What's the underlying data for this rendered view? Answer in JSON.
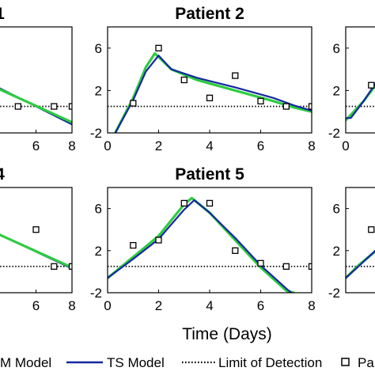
{
  "figure": {
    "xlabel": "Time (Days)",
    "legend": [
      {
        "label": "M Model",
        "color": "#2ecc40",
        "style": "line"
      },
      {
        "label": "TS Model",
        "color": "#1428a0",
        "style": "line"
      },
      {
        "label": "Limit of Detection",
        "color": "#000000",
        "style": "dotted"
      },
      {
        "label": "Pa",
        "color": "#000000",
        "style": "square-marker"
      }
    ],
    "colors": {
      "green_model": "#2ecc40",
      "ts_model": "#1428a0",
      "lod": "#000000"
    }
  },
  "chart_data": [
    {
      "type": "line",
      "panel": "top-left",
      "title": "1",
      "xlim": [
        0,
        8
      ],
      "ylim": [
        -2,
        8
      ],
      "xticks": [
        "6",
        "8"
      ],
      "yticks": [],
      "lod": 0.5,
      "series": [
        {
          "name": "TS Model",
          "x": [
            4,
            8
          ],
          "y": [
            2.2,
            -1.2
          ]
        },
        {
          "name": "M Model",
          "x": [
            4,
            8
          ],
          "y": [
            2.1,
            -1.0
          ]
        }
      ],
      "points": {
        "x": [
          5.0,
          7.0,
          8.0
        ],
        "y": [
          0.5,
          0.5,
          0.5
        ]
      }
    },
    {
      "type": "line",
      "panel": "top-center",
      "title": "Patient 2",
      "xlim": [
        0,
        8
      ],
      "ylim": [
        -2,
        8
      ],
      "xticks": [
        "0",
        "2",
        "4",
        "6",
        "8"
      ],
      "yticks": [
        "-2",
        "2",
        "6"
      ],
      "lod": 0.5,
      "series": [
        {
          "name": "M Model",
          "x": [
            0.3,
            1.0,
            1.5,
            1.85,
            2.5,
            3.5,
            5.0,
            6.5,
            7.3,
            8.0
          ],
          "y": [
            -2.0,
            1.3,
            4.2,
            5.5,
            4.0,
            3.0,
            2.0,
            1.0,
            0.4,
            0.0
          ]
        },
        {
          "name": "TS Model",
          "x": [
            0.3,
            1.0,
            1.5,
            2.0,
            2.5,
            3.5,
            5.0,
            6.5,
            7.3,
            8.0
          ],
          "y": [
            -2.0,
            1.1,
            3.8,
            5.3,
            4.0,
            3.2,
            2.3,
            1.3,
            0.6,
            0.1
          ]
        }
      ],
      "points": {
        "x": [
          1.0,
          2.0,
          3.0,
          4.0,
          5.0,
          6.0,
          7.0,
          8.0
        ],
        "y": [
          0.8,
          6.0,
          3.0,
          1.3,
          3.4,
          1.0,
          0.5,
          0.5
        ]
      }
    },
    {
      "type": "line",
      "panel": "top-right",
      "title": "",
      "xlim": [
        0,
        8
      ],
      "ylim": [
        -2,
        8
      ],
      "xticks": [
        "0"
      ],
      "yticks": [
        "-2",
        "2",
        "6"
      ],
      "lod": 0.5,
      "series": [
        {
          "name": "M Model",
          "x": [
            0.0,
            0.2,
            0.7,
            1.2
          ],
          "y": [
            -0.8,
            -0.3,
            1.0,
            2.6
          ]
        },
        {
          "name": "TS Model",
          "x": [
            0.0,
            0.2,
            0.7,
            1.2
          ],
          "y": [
            -0.6,
            -0.6,
            1.0,
            2.8
          ]
        }
      ],
      "points": {
        "x": [
          1.0
        ],
        "y": [
          2.5
        ]
      }
    },
    {
      "type": "line",
      "panel": "bottom-left",
      "title": "4",
      "xlim": [
        0,
        8
      ],
      "ylim": [
        -2,
        8
      ],
      "xticks": [
        "6",
        "8"
      ],
      "yticks": [],
      "lod": 0.5,
      "series": [
        {
          "name": "TS Model",
          "x": [
            4,
            8
          ],
          "y": [
            3.5,
            0.3
          ]
        },
        {
          "name": "M Model",
          "x": [
            4,
            8
          ],
          "y": [
            3.5,
            0.4
          ]
        }
      ],
      "points": {
        "x": [
          6.0,
          7.0,
          8.0
        ],
        "y": [
          4.0,
          0.5,
          0.5
        ]
      }
    },
    {
      "type": "line",
      "panel": "bottom-center",
      "title": "Patient 5",
      "xlim": [
        0,
        8
      ],
      "ylim": [
        -2,
        8
      ],
      "xticks": [
        "0",
        "2",
        "4",
        "6",
        "8"
      ],
      "yticks": [
        "-2",
        "2",
        "6"
      ],
      "lod": 0.5,
      "series": [
        {
          "name": "M Model",
          "x": [
            0.0,
            1.0,
            2.0,
            3.0,
            3.3,
            4.0,
            5.0,
            6.0,
            7.0,
            7.3
          ],
          "y": [
            -0.6,
            1.4,
            3.4,
            6.4,
            7.0,
            5.6,
            3.0,
            0.4,
            -1.8,
            -2.0
          ]
        },
        {
          "name": "TS Model",
          "x": [
            0.0,
            1.0,
            2.0,
            3.0,
            3.4,
            4.0,
            5.0,
            6.0,
            7.0,
            7.2
          ],
          "y": [
            -0.6,
            1.2,
            3.1,
            5.9,
            6.8,
            5.6,
            3.2,
            0.6,
            -1.6,
            -2.0
          ]
        }
      ],
      "points": {
        "x": [
          1.0,
          2.0,
          3.0,
          4.0,
          5.0,
          6.0,
          7.0,
          8.0
        ],
        "y": [
          2.5,
          3.0,
          6.5,
          6.5,
          2.0,
          0.8,
          0.5,
          0.5
        ]
      }
    },
    {
      "type": "line",
      "panel": "bottom-right",
      "title": "",
      "xlim": [
        0,
        8
      ],
      "ylim": [
        -2,
        8
      ],
      "xticks": [],
      "yticks": [
        "-2",
        "2",
        "6"
      ],
      "lod": 0.5,
      "series": [
        {
          "name": "M Model",
          "x": [
            0.0,
            0.5,
            1.2
          ],
          "y": [
            -0.6,
            0.6,
            2.0
          ]
        },
        {
          "name": "TS Model",
          "x": [
            0.0,
            0.5,
            1.2
          ],
          "y": [
            -0.6,
            0.5,
            2.1
          ]
        }
      ],
      "points": {
        "x": [
          1.0
        ],
        "y": [
          4.0
        ]
      }
    }
  ]
}
